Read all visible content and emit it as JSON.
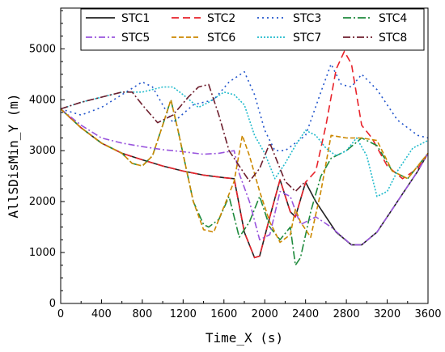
{
  "chart_data": {
    "type": "line",
    "title": "",
    "xlabel": "Time_X (s)",
    "ylabel": "AllSDisMin_Y (m)",
    "xlim": [
      0,
      3600
    ],
    "ylim": [
      0,
      5800
    ],
    "xticks": [
      0,
      400,
      800,
      1200,
      1600,
      2000,
      2400,
      2800,
      3200,
      3600
    ],
    "yticks": [
      0,
      1000,
      2000,
      3000,
      4000,
      5000
    ],
    "grid": false,
    "legend_position": "top",
    "series": [
      {
        "name": "STC1",
        "color": "#222222",
        "dash": "solid",
        "points": [
          [
            0,
            3820
          ],
          [
            200,
            3450
          ],
          [
            400,
            3150
          ],
          [
            600,
            2950
          ],
          [
            800,
            2820
          ],
          [
            1000,
            2700
          ],
          [
            1200,
            2600
          ],
          [
            1400,
            2520
          ],
          [
            1600,
            2470
          ],
          [
            1700,
            2450
          ],
          [
            1800,
            1400
          ],
          [
            1900,
            900
          ],
          [
            1950,
            930
          ],
          [
            2050,
            1700
          ],
          [
            2150,
            2430
          ],
          [
            2250,
            1800
          ],
          [
            2300,
            1700
          ],
          [
            2400,
            2380
          ],
          [
            2500,
            2000
          ],
          [
            2700,
            1400
          ],
          [
            2850,
            1150
          ],
          [
            2950,
            1150
          ],
          [
            3100,
            1400
          ],
          [
            3300,
            2000
          ],
          [
            3500,
            2600
          ],
          [
            3600,
            2950
          ]
        ]
      },
      {
        "name": "STC2",
        "color": "#e8222a",
        "dash": "9,5",
        "points": [
          [
            0,
            3820
          ],
          [
            200,
            3450
          ],
          [
            400,
            3150
          ],
          [
            600,
            2950
          ],
          [
            800,
            2820
          ],
          [
            1000,
            2700
          ],
          [
            1200,
            2600
          ],
          [
            1400,
            2520
          ],
          [
            1600,
            2470
          ],
          [
            1700,
            2450
          ],
          [
            1800,
            1400
          ],
          [
            1900,
            900
          ],
          [
            1950,
            930
          ],
          [
            2050,
            1700
          ],
          [
            2150,
            2430
          ],
          [
            2250,
            1800
          ],
          [
            2300,
            1700
          ],
          [
            2400,
            2380
          ],
          [
            2500,
            2600
          ],
          [
            2600,
            3500
          ],
          [
            2700,
            4600
          ],
          [
            2780,
            4950
          ],
          [
            2850,
            4700
          ],
          [
            2950,
            3500
          ],
          [
            3050,
            3250
          ],
          [
            3200,
            2700
          ],
          [
            3350,
            2450
          ],
          [
            3500,
            2650
          ],
          [
            3600,
            2950
          ]
        ]
      },
      {
        "name": "STC3",
        "color": "#2255cc",
        "dash": "2,4",
        "points": [
          [
            0,
            3820
          ],
          [
            200,
            3700
          ],
          [
            400,
            3850
          ],
          [
            600,
            4100
          ],
          [
            800,
            4350
          ],
          [
            900,
            4250
          ],
          [
            1000,
            3900
          ],
          [
            1100,
            3550
          ],
          [
            1300,
            3900
          ],
          [
            1500,
            4000
          ],
          [
            1650,
            4350
          ],
          [
            1800,
            4550
          ],
          [
            1900,
            4100
          ],
          [
            2000,
            3400
          ],
          [
            2100,
            3000
          ],
          [
            2200,
            3000
          ],
          [
            2400,
            3300
          ],
          [
            2550,
            4150
          ],
          [
            2650,
            4700
          ],
          [
            2750,
            4300
          ],
          [
            2850,
            4250
          ],
          [
            2950,
            4500
          ],
          [
            3100,
            4200
          ],
          [
            3300,
            3600
          ],
          [
            3500,
            3300
          ],
          [
            3600,
            3250
          ]
        ]
      },
      {
        "name": "STC4",
        "color": "#1e8a3c",
        "dash": "10,3,2,3",
        "points": [
          [
            0,
            3820
          ],
          [
            200,
            3450
          ],
          [
            400,
            3150
          ],
          [
            600,
            2950
          ],
          [
            700,
            2750
          ],
          [
            800,
            2700
          ],
          [
            900,
            2900
          ],
          [
            1000,
            3500
          ],
          [
            1080,
            4000
          ],
          [
            1150,
            3400
          ],
          [
            1300,
            2000
          ],
          [
            1400,
            1550
          ],
          [
            1450,
            1500
          ],
          [
            1550,
            1650
          ],
          [
            1650,
            2100
          ],
          [
            1750,
            1300
          ],
          [
            1850,
            1600
          ],
          [
            1950,
            2100
          ],
          [
            2050,
            1500
          ],
          [
            2150,
            1250
          ],
          [
            2250,
            1500
          ],
          [
            2300,
            750
          ],
          [
            2350,
            900
          ],
          [
            2450,
            1800
          ],
          [
            2550,
            2500
          ],
          [
            2650,
            2850
          ],
          [
            2800,
            3000
          ],
          [
            2950,
            3250
          ],
          [
            3100,
            3100
          ],
          [
            3250,
            2600
          ],
          [
            3400,
            2450
          ],
          [
            3500,
            2700
          ],
          [
            3600,
            2950
          ]
        ]
      },
      {
        "name": "STC5",
        "color": "#9955dd",
        "dash": "8,3,2,3",
        "points": [
          [
            0,
            3820
          ],
          [
            200,
            3500
          ],
          [
            400,
            3250
          ],
          [
            600,
            3150
          ],
          [
            800,
            3080
          ],
          [
            1000,
            3020
          ],
          [
            1200,
            2980
          ],
          [
            1400,
            2930
          ],
          [
            1550,
            2950
          ],
          [
            1700,
            3000
          ],
          [
            1750,
            2550
          ],
          [
            1850,
            2000
          ],
          [
            1950,
            1250
          ],
          [
            2050,
            1350
          ],
          [
            2150,
            2200
          ],
          [
            2250,
            2100
          ],
          [
            2350,
            1550
          ],
          [
            2500,
            1700
          ],
          [
            2650,
            1500
          ],
          [
            2850,
            1150
          ],
          [
            2950,
            1150
          ],
          [
            3100,
            1400
          ],
          [
            3300,
            2000
          ],
          [
            3500,
            2600
          ],
          [
            3600,
            2950
          ]
        ]
      },
      {
        "name": "STC6",
        "color": "#cc8800",
        "dash": "6,3",
        "points": [
          [
            0,
            3820
          ],
          [
            200,
            3450
          ],
          [
            400,
            3150
          ],
          [
            600,
            2950
          ],
          [
            700,
            2750
          ],
          [
            800,
            2700
          ],
          [
            900,
            2900
          ],
          [
            1000,
            3500
          ],
          [
            1080,
            4000
          ],
          [
            1150,
            3400
          ],
          [
            1300,
            2000
          ],
          [
            1400,
            1450
          ],
          [
            1500,
            1400
          ],
          [
            1600,
            1900
          ],
          [
            1700,
            2400
          ],
          [
            1780,
            3300
          ],
          [
            1850,
            2900
          ],
          [
            1950,
            2200
          ],
          [
            2050,
            1600
          ],
          [
            2150,
            1200
          ],
          [
            2250,
            1350
          ],
          [
            2300,
            1850
          ],
          [
            2350,
            1600
          ],
          [
            2450,
            1300
          ],
          [
            2550,
            2200
          ],
          [
            2650,
            3300
          ],
          [
            2800,
            3250
          ],
          [
            2950,
            3250
          ],
          [
            3100,
            3200
          ],
          [
            3250,
            2600
          ],
          [
            3400,
            2450
          ],
          [
            3500,
            2700
          ],
          [
            3600,
            2950
          ]
        ]
      },
      {
        "name": "STC7",
        "color": "#22bbcc",
        "dash": "2,2",
        "points": [
          [
            0,
            3820
          ],
          [
            200,
            3950
          ],
          [
            400,
            4050
          ],
          [
            600,
            4150
          ],
          [
            800,
            4150
          ],
          [
            1000,
            4250
          ],
          [
            1100,
            4250
          ],
          [
            1200,
            4100
          ],
          [
            1350,
            3850
          ],
          [
            1450,
            3950
          ],
          [
            1600,
            4150
          ],
          [
            1700,
            4100
          ],
          [
            1800,
            3900
          ],
          [
            1900,
            3300
          ],
          [
            2000,
            2950
          ],
          [
            2100,
            2450
          ],
          [
            2200,
            2750
          ],
          [
            2300,
            3100
          ],
          [
            2400,
            3400
          ],
          [
            2500,
            3300
          ],
          [
            2600,
            3050
          ],
          [
            2700,
            2900
          ],
          [
            2800,
            3000
          ],
          [
            2900,
            3250
          ],
          [
            3000,
            2900
          ],
          [
            3100,
            2100
          ],
          [
            3200,
            2200
          ],
          [
            3300,
            2600
          ],
          [
            3450,
            3050
          ],
          [
            3600,
            3200
          ]
        ]
      },
      {
        "name": "STC8",
        "color": "#6e1f2e",
        "dash": "9,3,2,3",
        "points": [
          [
            0,
            3820
          ],
          [
            200,
            3950
          ],
          [
            400,
            4050
          ],
          [
            600,
            4150
          ],
          [
            700,
            4150
          ],
          [
            800,
            3900
          ],
          [
            950,
            3550
          ],
          [
            1100,
            3700
          ],
          [
            1250,
            4050
          ],
          [
            1350,
            4250
          ],
          [
            1450,
            4300
          ],
          [
            1550,
            3700
          ],
          [
            1650,
            3000
          ],
          [
            1750,
            2700
          ],
          [
            1850,
            2400
          ],
          [
            1950,
            2650
          ],
          [
            2050,
            3150
          ],
          [
            2100,
            2900
          ],
          [
            2200,
            2400
          ],
          [
            2300,
            2200
          ],
          [
            2400,
            2400
          ]
        ]
      }
    ]
  }
}
